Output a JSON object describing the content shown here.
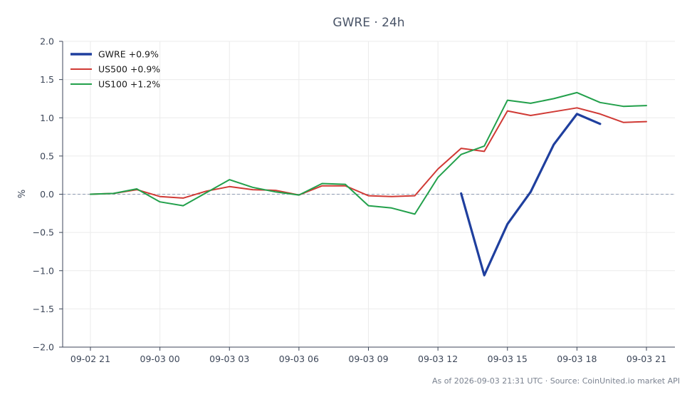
{
  "chart_data": {
    "type": "line",
    "title": "GWRE · 24h",
    "ylabel": "%",
    "xlabel": "",
    "ylim": [
      -2.0,
      2.0
    ],
    "yticks": [
      2.0,
      1.5,
      1.0,
      0.5,
      0.0,
      -0.5,
      -1.0,
      -1.5,
      -2.0
    ],
    "ytick_labels": [
      "2.0",
      "1.5",
      "1.0",
      "0.5",
      "0.0",
      "−0.5",
      "−1.0",
      "−1.5",
      "−2.0"
    ],
    "xticks": [
      "09-02 21",
      "09-03 00",
      "09-03 03",
      "09-03 06",
      "09-03 09",
      "09-03 12",
      "09-03 15",
      "09-03 18",
      "09-03 21"
    ],
    "x": [
      "09-02 21",
      "09-02 22",
      "09-02 23",
      "09-03 00",
      "09-03 01",
      "09-03 02",
      "09-03 03",
      "09-03 04",
      "09-03 05",
      "09-03 06",
      "09-03 07",
      "09-03 08",
      "09-03 09",
      "09-03 10",
      "09-03 11",
      "09-03 12",
      "09-03 13",
      "09-03 14",
      "09-03 15",
      "09-03 16",
      "09-03 17",
      "09-03 18",
      "09-03 19",
      "09-03 20",
      "09-03 21"
    ],
    "grid": true,
    "zero_line": true,
    "legend_position": "top-left",
    "series": [
      {
        "name": "GWRE +0.9%",
        "color": "#1f3f9e",
        "values": [
          null,
          null,
          null,
          null,
          null,
          null,
          null,
          null,
          null,
          null,
          null,
          null,
          null,
          null,
          null,
          null,
          0.01,
          -1.06,
          -0.39,
          0.03,
          0.65,
          1.05,
          0.92,
          null,
          null
        ]
      },
      {
        "name": "US500 +0.9%",
        "color": "#d03a35",
        "values": [
          0.0,
          0.01,
          0.06,
          -0.03,
          -0.05,
          0.04,
          0.1,
          0.06,
          0.05,
          -0.01,
          0.11,
          0.11,
          -0.02,
          -0.03,
          -0.02,
          0.33,
          0.6,
          0.56,
          1.09,
          1.03,
          1.08,
          1.13,
          1.05,
          0.94,
          0.95
        ]
      },
      {
        "name": "US100 +1.2%",
        "color": "#22a04b",
        "values": [
          0.0,
          0.01,
          0.07,
          -0.1,
          -0.15,
          0.02,
          0.19,
          0.09,
          0.03,
          -0.01,
          0.14,
          0.13,
          -0.15,
          -0.18,
          -0.26,
          0.22,
          0.52,
          0.63,
          1.23,
          1.19,
          1.25,
          1.33,
          1.2,
          1.15,
          1.16
        ]
      }
    ]
  },
  "footer": "As of 2026-09-03 21:31 UTC · Source: CoinUnited.io market API"
}
